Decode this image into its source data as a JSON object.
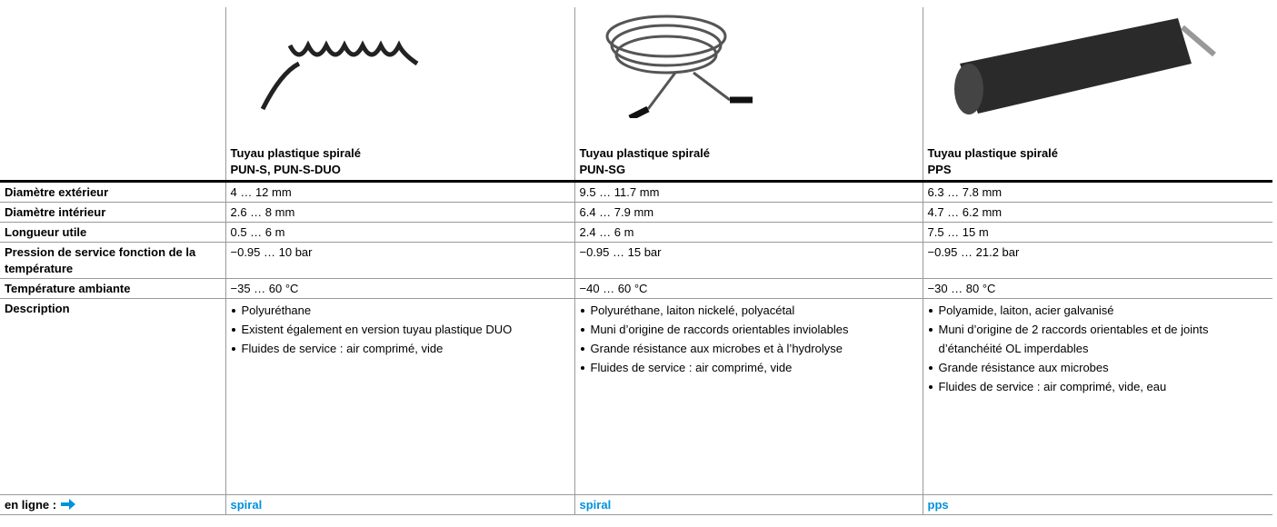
{
  "header": {
    "products": [
      {
        "title": "Tuyau plastique spiralé",
        "model": "PUN-S, PUN-S-DUO"
      },
      {
        "title": "Tuyau plastique spiralé",
        "model": "PUN-SG"
      },
      {
        "title": "Tuyau plastique spiralé",
        "model": "PPS"
      }
    ]
  },
  "table": {
    "rows": [
      {
        "label": "Diamètre extérieur",
        "cells": [
          "4 … 12 mm",
          "9.5 … 11.7 mm",
          "6.3 … 7.8 mm"
        ]
      },
      {
        "label": "Diamètre intérieur",
        "cells": [
          "2.6 … 8 mm",
          "6.4 … 7.9 mm",
          "4.7 … 6.2 mm"
        ]
      },
      {
        "label": "Longueur utile",
        "cells": [
          "0.5 … 6 m",
          "2.4 … 6 m",
          "7.5 … 15 m"
        ]
      },
      {
        "label": "Pression de service fonction de la température",
        "cells": [
          "−0.95 … 10 bar",
          "−0.95 … 15 bar",
          "−0.95 … 21.2 bar"
        ]
      },
      {
        "label": "Température ambiante",
        "cells": [
          "−35 … 60 °C",
          "−40 … 60 °C",
          "−30 … 80 °C"
        ]
      }
    ]
  },
  "description": {
    "label": "Description",
    "cells": [
      [
        "Polyuréthane",
        "Existent également en version tuyau plastique DUO",
        "Fluides de service : air comprimé, vide"
      ],
      [
        "Polyuréthane, laiton nickelé, polyacétal",
        "Muni d’origine de raccords orientables inviolables",
        "Grande résistance aux microbes et à l’hydrolyse",
        "Fluides de service : air comprimé, vide"
      ],
      [
        "Polyamide, laiton, acier galvanisé",
        "Muni d’origine de 2 raccords orientables et de joints d’étanchéité OL imperdables",
        "Grande résistance aux microbes",
        "Fluides de service : air comprimé, vide, eau"
      ]
    ]
  },
  "online": {
    "label": "en ligne :",
    "links": [
      "spiral",
      "spiral",
      "pps"
    ]
  }
}
